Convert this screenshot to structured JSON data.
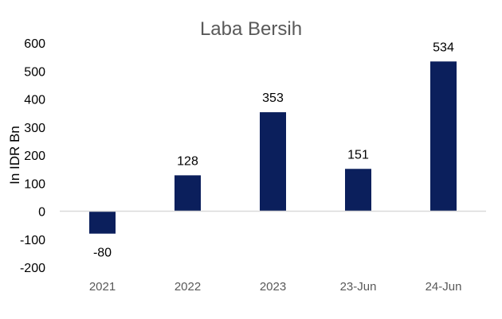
{
  "chart_data": {
    "type": "bar",
    "title": "Laba Bersih",
    "ylabel": "In IDR Bn",
    "xlabel": "",
    "categories": [
      "2021",
      "2022",
      "2023",
      "23-Jun",
      "24-Jun"
    ],
    "values": [
      -80,
      128,
      353,
      151,
      534
    ],
    "data_labels": [
      "-80",
      "128",
      "353",
      "151",
      "534"
    ],
    "ylim": [
      -200,
      600
    ],
    "yticks": [
      -200,
      -100,
      0,
      100,
      200,
      300,
      400,
      500,
      600
    ],
    "grid": false,
    "legend": "none",
    "bar_color": "#0b1f5c",
    "axis_color": "#d9d9d9"
  }
}
